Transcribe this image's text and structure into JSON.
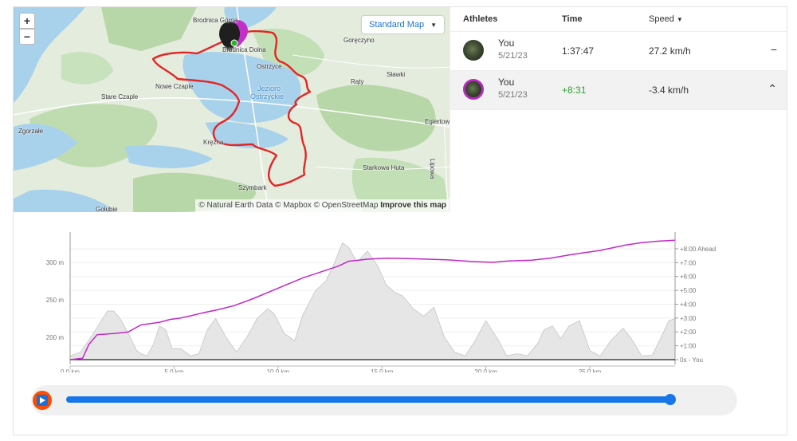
{
  "map": {
    "zoom_in": "+",
    "zoom_out": "−",
    "style_label": "Standard Map",
    "attribution_text": "© Natural Earth Data © Mapbox © OpenStreetMap",
    "attribution_link": "Improve this map",
    "lake_label_1": "Jezioro",
    "lake_label_2": "Ostrzyckie",
    "places": [
      {
        "name": "Brodnica Górna"
      },
      {
        "name": "Goręczyno"
      },
      {
        "name": "Brodnica Dolna"
      },
      {
        "name": "Ostrzyce"
      },
      {
        "name": "Sławki"
      },
      {
        "name": "Nowe Czaple"
      },
      {
        "name": "Rąty"
      },
      {
        "name": "Stare Czaple"
      },
      {
        "name": "Egiertowo"
      },
      {
        "name": "Zgorzałe"
      },
      {
        "name": "Kręzna"
      },
      {
        "name": "Starkowa Huta"
      },
      {
        "name": "Szymbark"
      },
      {
        "name": "Gołubie"
      },
      {
        "name": "Lipowa"
      }
    ],
    "colors": {
      "water": "#a8d1ec",
      "forest": "#b7d7a8",
      "land": "#e4ecdd",
      "route": "#e32626"
    }
  },
  "athletes": {
    "header": {
      "athletes": "Athletes",
      "time": "Time",
      "speed": "Speed",
      "speed_sort_icon": "caret-down-icon"
    },
    "rows": [
      {
        "name": "You",
        "date": "5/21/23",
        "time": "1:37:47",
        "speed": "27.2 km/h",
        "action": "−",
        "time_color": "#333333"
      },
      {
        "name": "You",
        "date": "5/21/23",
        "time": "+8:31",
        "speed": "-3.4 km/h",
        "action": "⌃",
        "time_color": "#2f9e2f"
      }
    ]
  },
  "chart_data": {
    "type": "area",
    "x_ticks": [
      0,
      5,
      10,
      15,
      20,
      25
    ],
    "x_tick_labels": [
      "0.0 km",
      "5.0 km",
      "10.0 km",
      "15.0 km",
      "20.0 km",
      "25.0 km"
    ],
    "xlim": [
      0,
      29.1
    ],
    "left_ticks": [
      200,
      250,
      300
    ],
    "left_tick_labels": [
      "200 m",
      "250 m",
      "300 m"
    ],
    "left_ylim": [
      170,
      334
    ],
    "right_ticks": [
      0,
      1,
      2,
      3,
      4,
      5,
      6,
      7,
      8
    ],
    "right_tick_labels": [
      "0s - You",
      "+1:00",
      "+2:00",
      "+3:00",
      "+4:00",
      "+5:00",
      "+6:00",
      "+7:00",
      "+8:00 Ahead"
    ],
    "right_ylim": [
      0,
      8.86
    ],
    "series": [
      {
        "values_km": [
          0,
          0.5,
          1,
          1.5,
          1.8,
          2.1,
          2.4,
          2.8,
          3.2,
          3.4,
          3.7,
          4,
          4.3,
          4.6,
          4.9,
          5.3,
          5.8,
          6.2,
          6.6,
          7,
          7.5,
          8,
          8.5,
          9,
          9.5,
          9.8,
          10.3,
          10.8,
          11.2,
          11.8,
          12.3,
          12.7,
          13.1,
          13.4,
          13.8,
          14.3,
          14.8,
          15.2,
          15.6,
          16,
          16.5,
          17,
          17.5,
          18,
          18.5,
          19,
          19.5,
          20,
          20.6,
          21,
          21.5,
          22,
          22.5,
          22.8,
          23.2,
          23.6,
          24,
          24.5,
          25,
          25.5,
          26,
          26.6,
          27,
          27.5,
          28,
          28.4,
          28.8,
          29.1
        ],
        "values_m": [
          175,
          180,
          200,
          222,
          235,
          235,
          225,
          205,
          182,
          178,
          175,
          190,
          215,
          210,
          185,
          185,
          175,
          178,
          210,
          225,
          200,
          180,
          200,
          225,
          238,
          232,
          205,
          195,
          230,
          262,
          275,
          298,
          326,
          320,
          300,
          315,
          295,
          270,
          260,
          255,
          238,
          228,
          240,
          200,
          180,
          175,
          196,
          222,
          196,
          175,
          178,
          175,
          192,
          210,
          215,
          198,
          215,
          222,
          182,
          175,
          195,
          212,
          198,
          175,
          176,
          198,
          222,
          225
        ]
      },
      {
        "name": "You",
        "values_km": [
          0,
          0.6,
          0.9,
          1.3,
          2.2,
          2.8,
          3.4,
          4.3,
          4.8,
          5.3,
          5.9,
          6.3,
          7.1,
          7.9,
          8.8,
          9.6,
          10.4,
          11.2,
          12.2,
          12.9,
          13.4,
          14.3,
          15.2,
          16.1,
          17.2,
          18.2,
          19.3,
          20.3,
          21.1,
          22.2,
          23.1,
          24.2,
          25.5,
          26.7,
          27.5,
          28.3,
          29.1
        ],
        "values_min": [
          0,
          0.1,
          1.1,
          1.8,
          1.9,
          2,
          2.5,
          2.7,
          2.9,
          3.0,
          3.2,
          3.35,
          3.6,
          3.9,
          4.4,
          4.9,
          5.4,
          5.9,
          6.4,
          6.75,
          7.1,
          7.25,
          7.32,
          7.3,
          7.25,
          7.2,
          7.08,
          7.02,
          7.12,
          7.18,
          7.32,
          7.6,
          7.88,
          8.26,
          8.44,
          8.55,
          8.61
        ]
      }
    ],
    "colors": {
      "elevation_fill": "#e6e6e6",
      "elevation_line": "#c4c4c4",
      "gap_line": "#c228c9"
    }
  },
  "player": {
    "progress": 0.995,
    "play_icon": "play-icon"
  }
}
